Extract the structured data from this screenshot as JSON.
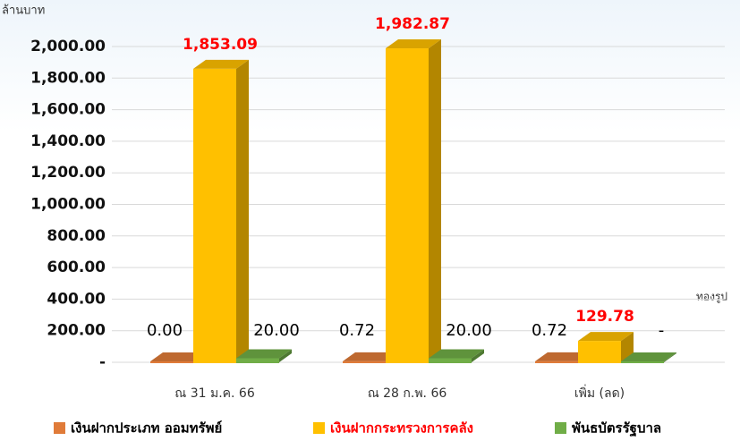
{
  "chart_data": {
    "type": "bar3d",
    "y_label": "ล้านบาท",
    "annotation": "ทองรูป",
    "categories": [
      "ณ 31 ม.ค. 66",
      "ณ 28 ก.พ. 66",
      "เพิ่ม (ลด)"
    ],
    "series": [
      {
        "name": "เงินฝากประเภท ออมทรัพย์",
        "color": "#e07b39",
        "values": [
          0,
          0.72,
          0.72
        ],
        "value_labels": [
          "0.00",
          "0.72",
          "0.72"
        ],
        "label_color": "#000000"
      },
      {
        "name": "เงินฝากกระทรวงการคลัง",
        "color": "#ffc000",
        "values": [
          1853.09,
          1982.87,
          129.78
        ],
        "value_labels": [
          "1,853.09",
          "1,982.87",
          "129.78"
        ],
        "label_color": "#ff0000"
      },
      {
        "name": "พันธบัตรรัฐบาล",
        "color": "#70ad47",
        "values": [
          20,
          20,
          0
        ],
        "value_labels": [
          "20.00",
          "20.00",
          "-"
        ],
        "label_color": "#000000"
      }
    ],
    "ylim": [
      0,
      2000
    ],
    "yticks": [
      {
        "value": 0,
        "label": "-"
      },
      {
        "value": 200,
        "label": "200.00"
      },
      {
        "value": 400,
        "label": "400.00"
      },
      {
        "value": 600,
        "label": "600.00"
      },
      {
        "value": 800,
        "label": "800.00"
      },
      {
        "value": 1000,
        "label": "1,000.00"
      },
      {
        "value": 1200,
        "label": "1,200.00"
      },
      {
        "value": 1400,
        "label": "1,400.00"
      },
      {
        "value": 1600,
        "label": "1,600.00"
      },
      {
        "value": 1800,
        "label": "1,800.00"
      },
      {
        "value": 2000,
        "label": "2,000.00"
      }
    ],
    "grid": true
  }
}
